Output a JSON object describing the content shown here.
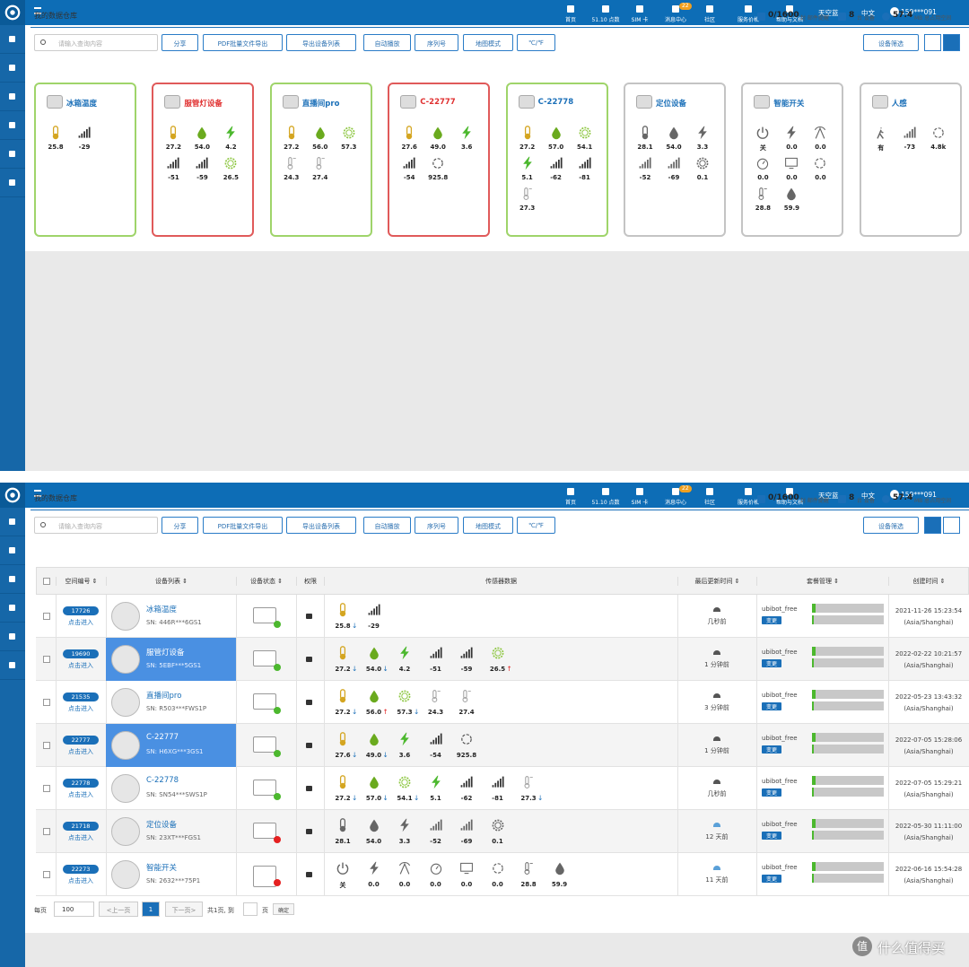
{
  "nav": [
    "首页",
    "51.10 点数",
    "SIM 卡",
    "消息中心",
    "社区",
    "服务价格",
    "帮助与文档"
  ],
  "nav_badge": "22",
  "nav_menus": [
    "天空蓝",
    "中文",
    "159***091"
  ],
  "breadcrumb": "我的数据仓库",
  "stats": [
    {
      "value": "0/1600",
      "unit": "封 邮件提醒"
    },
    {
      "value": "8",
      "unit": "台 设备"
    },
    {
      "value": "57.4",
      "unit": "MB 总占用空间"
    }
  ],
  "toolbar": {
    "search_placeholder": "请输入查询内容",
    "buttons": [
      "分享",
      "PDF批量文件导出",
      "导出设备列表",
      "自动播放",
      "序列号",
      "地图模式",
      "℃/℉"
    ],
    "filter": "设备筛选"
  },
  "cards": [
    {
      "name": "冰箱温度",
      "status": "ok",
      "sensors": [
        {
          "icon": "temp",
          "value": "25.8"
        },
        {
          "icon": "signal",
          "value": "-29"
        }
      ]
    },
    {
      "name": "服管灯设备",
      "status": "alarm",
      "sensors": [
        {
          "icon": "temp",
          "value": "27.2"
        },
        {
          "icon": "humid",
          "value": "54.0"
        },
        {
          "icon": "bolt",
          "value": "4.2"
        },
        {
          "icon": "signal",
          "value": "-51"
        },
        {
          "icon": "signal",
          "value": "-59"
        },
        {
          "icon": "sun",
          "value": "26.5"
        }
      ]
    },
    {
      "name": "直播间pro",
      "status": "ok",
      "sensors": [
        {
          "icon": "temp",
          "value": "27.2"
        },
        {
          "icon": "humid",
          "value": "56.0"
        },
        {
          "icon": "sun",
          "value": "57.3"
        },
        {
          "icon": "therm",
          "value": "24.3"
        },
        {
          "icon": "therm",
          "value": "27.4"
        }
      ]
    },
    {
      "name": "C-22777",
      "status": "alarm",
      "sensors": [
        {
          "icon": "temp",
          "value": "27.6"
        },
        {
          "icon": "humid",
          "value": "49.0"
        },
        {
          "icon": "bolt",
          "value": "3.6"
        },
        {
          "icon": "signal",
          "value": "-54"
        },
        {
          "icon": "ring",
          "value": "925.8"
        }
      ]
    },
    {
      "name": "C-22778",
      "status": "ok",
      "sensors": [
        {
          "icon": "temp",
          "value": "27.2"
        },
        {
          "icon": "humid",
          "value": "57.0"
        },
        {
          "icon": "sun",
          "value": "54.1"
        },
        {
          "icon": "bolt",
          "value": "5.1"
        },
        {
          "icon": "signal",
          "value": "-62"
        },
        {
          "icon": "signal",
          "value": "-81"
        },
        {
          "icon": "therm",
          "value": "27.3"
        }
      ]
    },
    {
      "name": "定位设备",
      "status": "offline",
      "sensors": [
        {
          "icon": "temp",
          "value": "28.1"
        },
        {
          "icon": "humid",
          "value": "54.0"
        },
        {
          "icon": "bolt",
          "value": "3.3"
        },
        {
          "icon": "signal",
          "value": "-52"
        },
        {
          "icon": "signal",
          "value": "-69"
        },
        {
          "icon": "sun",
          "value": "0.1"
        }
      ]
    },
    {
      "name": "智能开关",
      "status": "offline",
      "sensors": [
        {
          "icon": "power",
          "value": "关"
        },
        {
          "icon": "bolt",
          "value": "0.0"
        },
        {
          "icon": "antenna",
          "value": "0.0"
        },
        {
          "icon": "gauge",
          "value": "0.0"
        },
        {
          "icon": "monitor",
          "value": "0.0"
        },
        {
          "icon": "timer",
          "value": "0.0"
        },
        {
          "icon": "therm",
          "value": "28.8"
        },
        {
          "icon": "humid",
          "value": "59.9"
        }
      ]
    },
    {
      "name": "人感",
      "status": "offline",
      "sensors": [
        {
          "icon": "walk",
          "value": "有"
        },
        {
          "icon": "signal",
          "value": "-73"
        },
        {
          "icon": "ring",
          "value": "4.8k"
        }
      ]
    }
  ],
  "table": {
    "headers": [
      "空间编号 ⇕",
      "设备列表 ⇕",
      "设备状态 ⇕",
      "权限",
      "传感器数据",
      "最后更新时间 ⇕",
      "套餐管理 ⇕",
      "创建时间 ⇕"
    ],
    "enter": "点击进入",
    "plan": "ubibot_free",
    "change": "变更",
    "tz": "(Asia/Shanghai)",
    "rows": [
      {
        "id": "17726",
        "name": "冰箱温度",
        "sn": "SN: 446R***6GS1",
        "online": true,
        "selected": false,
        "sensors": [
          {
            "icon": "temp",
            "value": "25.8",
            "trend": "↓"
          },
          {
            "icon": "signal",
            "value": "-29"
          }
        ],
        "updated": "几秒前",
        "created": "2021-11-26 15:23:54"
      },
      {
        "id": "19690",
        "name": "服管灯设备",
        "sn": "SN: 5EBF***5GS1",
        "online": true,
        "selected": true,
        "sensors": [
          {
            "icon": "temp",
            "value": "27.2",
            "trend": "↓"
          },
          {
            "icon": "humid",
            "value": "54.0",
            "trend": "↓"
          },
          {
            "icon": "bolt",
            "value": "4.2"
          },
          {
            "icon": "signal",
            "value": "-51"
          },
          {
            "icon": "signal",
            "value": "-59"
          },
          {
            "icon": "sun",
            "value": "26.5",
            "trend": "↑"
          }
        ],
        "updated": "1 分钟前",
        "created": "2022-02-22 10:21:57"
      },
      {
        "id": "21535",
        "name": "直播间pro",
        "sn": "SN: R503***FWS1P",
        "online": true,
        "selected": false,
        "sensors": [
          {
            "icon": "temp",
            "value": "27.2",
            "trend": "↓"
          },
          {
            "icon": "humid",
            "value": "56.0",
            "trend": "↑"
          },
          {
            "icon": "sun",
            "value": "57.3",
            "trend": "↓"
          },
          {
            "icon": "therm",
            "value": "24.3"
          },
          {
            "icon": "therm",
            "value": "27.4"
          }
        ],
        "updated": "3 分钟前",
        "created": "2022-05-23 13:43:32"
      },
      {
        "id": "22777",
        "name": "C-22777",
        "sn": "SN: H6XG***3GS1",
        "online": true,
        "selected": true,
        "sensors": [
          {
            "icon": "temp",
            "value": "27.6",
            "trend": "↓"
          },
          {
            "icon": "humid",
            "value": "49.0",
            "trend": "↓"
          },
          {
            "icon": "bolt",
            "value": "3.6"
          },
          {
            "icon": "signal",
            "value": "-54"
          },
          {
            "icon": "ring",
            "value": "925.8"
          }
        ],
        "updated": "1 分钟前",
        "created": "2022-07-05 15:28:06"
      },
      {
        "id": "22778",
        "name": "C-22778",
        "sn": "SN: SN54***SWS1P",
        "online": true,
        "selected": false,
        "sensors": [
          {
            "icon": "temp",
            "value": "27.2",
            "trend": "↓"
          },
          {
            "icon": "humid",
            "value": "57.0",
            "trend": "↓"
          },
          {
            "icon": "sun",
            "value": "54.1",
            "trend": "↓"
          },
          {
            "icon": "bolt",
            "value": "5.1"
          },
          {
            "icon": "signal",
            "value": "-62"
          },
          {
            "icon": "signal",
            "value": "-81"
          },
          {
            "icon": "therm",
            "value": "27.3",
            "trend": "↓"
          }
        ],
        "updated": "几秒前",
        "created": "2022-07-05 15:29:21"
      },
      {
        "id": "21718",
        "name": "定位设备",
        "sn": "SN: 23XT***FGS1",
        "online": false,
        "selected": false,
        "sensors": [
          {
            "icon": "temp",
            "value": "28.1"
          },
          {
            "icon": "humid",
            "value": "54.0"
          },
          {
            "icon": "bolt",
            "value": "3.3"
          },
          {
            "icon": "signal",
            "value": "-52"
          },
          {
            "icon": "signal",
            "value": "-69"
          },
          {
            "icon": "sun",
            "value": "0.1"
          }
        ],
        "updated": "12 天前",
        "created": "2022-05-30 11:11:00"
      },
      {
        "id": "22273",
        "name": "智能开关",
        "sn": "SN: 2632***75P1",
        "online": false,
        "selected": false,
        "sensors": [
          {
            "icon": "power",
            "value": "关"
          },
          {
            "icon": "bolt",
            "value": "0.0"
          },
          {
            "icon": "antenna",
            "value": "0.0"
          },
          {
            "icon": "gauge",
            "value": "0.0"
          },
          {
            "icon": "monitor",
            "value": "0.0"
          },
          {
            "icon": "timer",
            "value": "0.0"
          },
          {
            "icon": "therm",
            "value": "28.8"
          },
          {
            "icon": "humid",
            "value": "59.9"
          }
        ],
        "updated": "11 天前",
        "created": "2022-06-16 15:54:28"
      }
    ]
  },
  "pager": {
    "per_page": "每页",
    "size": "100",
    "prev": "<上一页",
    "page": "1",
    "next": "下一页>",
    "total": "共1页, 到",
    "page_unit": "页",
    "go": "确定"
  },
  "watermark": {
    "badge": "值",
    "text": "什么值得买"
  }
}
